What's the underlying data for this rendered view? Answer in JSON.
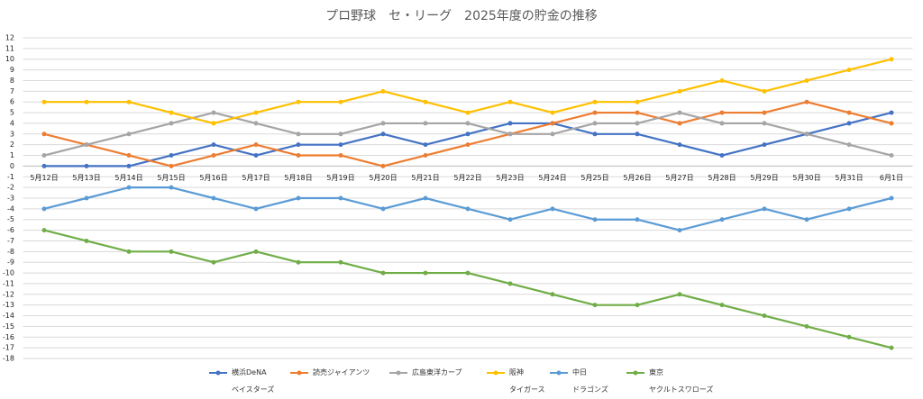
{
  "chart_data": {
    "type": "line",
    "title": "プロ野球　セ・リーグ　2025年度の貯金の推移",
    "categories": [
      "5月12日",
      "5月13日",
      "5月14日",
      "5月15日",
      "5月16日",
      "5月17日",
      "5月18日",
      "5月19日",
      "5月20日",
      "5月21日",
      "5月22日",
      "5月23日",
      "5月24日",
      "5月25日",
      "5月26日",
      "5月27日",
      "5月28日",
      "5月29日",
      "5月30日",
      "5月31日",
      "6月1日"
    ],
    "series": [
      {
        "name": "横浜DeNA\nベイスターズ",
        "color": "#4472c4",
        "values": [
          0,
          0,
          0,
          1,
          2,
          1,
          2,
          2,
          3,
          2,
          3,
          4,
          4,
          3,
          3,
          2,
          1,
          2,
          3,
          4,
          5
        ]
      },
      {
        "name": "読売ジャイアンツ",
        "color": "#ed7d31",
        "values": [
          3,
          2,
          1,
          0,
          1,
          2,
          1,
          1,
          0,
          1,
          2,
          3,
          4,
          5,
          5,
          4,
          5,
          5,
          6,
          5,
          4
        ]
      },
      {
        "name": "広島東洋カープ",
        "color": "#a5a5a5",
        "values": [
          1,
          2,
          3,
          4,
          5,
          4,
          3,
          3,
          4,
          4,
          4,
          3,
          3,
          4,
          4,
          5,
          4,
          4,
          3,
          2,
          1
        ]
      },
      {
        "name": "阪神\nタイガース",
        "color": "#ffc000",
        "values": [
          6,
          6,
          6,
          5,
          4,
          5,
          6,
          6,
          7,
          6,
          5,
          6,
          5,
          6,
          6,
          7,
          8,
          7,
          8,
          9,
          10
        ]
      },
      {
        "name": "中日\nドラゴンズ",
        "color": "#5b9bd5",
        "values": [
          -4,
          -3,
          -2,
          -2,
          -3,
          -4,
          -3,
          -3,
          -4,
          -3,
          -4,
          -5,
          -4,
          -5,
          -5,
          -6,
          -5,
          -4,
          -5,
          -4,
          -3
        ]
      },
      {
        "name": "東京\nヤクルトスワローズ",
        "color": "#70ad47",
        "values": [
          -6,
          -7,
          -8,
          -8,
          -9,
          -8,
          -9,
          -9,
          -10,
          -10,
          -10,
          -11,
          -12,
          -13,
          -13,
          -12,
          -13,
          -14,
          -15,
          -16,
          -17
        ]
      }
    ],
    "ylim": [
      -18,
      12
    ],
    "yticks": [
      -18,
      -17,
      -16,
      -15,
      -14,
      -13,
      -12,
      -11,
      -10,
      -9,
      -8,
      -7,
      -6,
      -5,
      -4,
      -3,
      -2,
      -1,
      0,
      1,
      2,
      3,
      4,
      5,
      6,
      7,
      8,
      9,
      10,
      11,
      12
    ],
    "grid": true
  }
}
